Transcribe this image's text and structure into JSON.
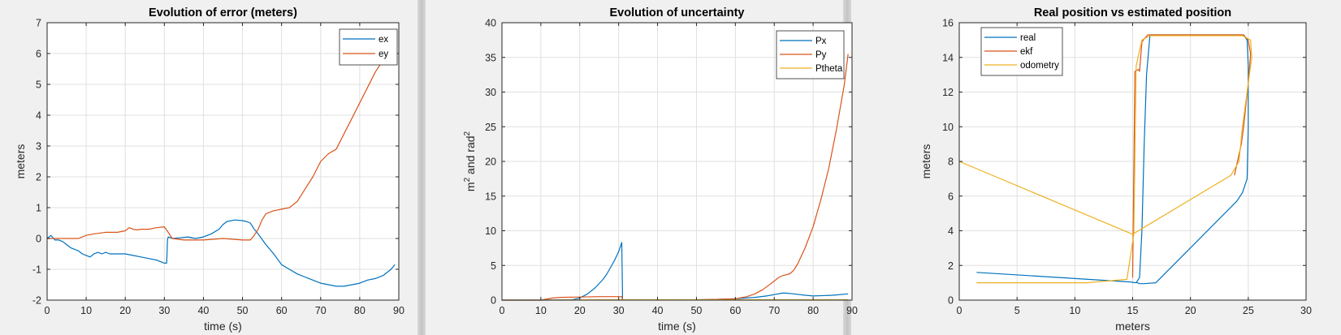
{
  "figure": {
    "background": "#f0f0f0",
    "plot_background": "#ffffff"
  },
  "chart_data": [
    {
      "type": "line",
      "title": "Evolution of error (meters)",
      "xlabel": "time (s)",
      "ylabel": "meters",
      "xlim": [
        0,
        90
      ],
      "ylim": [
        -2,
        7
      ],
      "xticks": [
        0,
        10,
        20,
        30,
        40,
        50,
        60,
        70,
        80,
        90
      ],
      "yticks": [
        -2,
        -1,
        0,
        1,
        2,
        3,
        4,
        5,
        6,
        7
      ],
      "grid": true,
      "legend": "top-right",
      "series": [
        {
          "name": "ex",
          "color": "#0072BD",
          "x": [
            0,
            1,
            2,
            3,
            4,
            5,
            6,
            7,
            8,
            9,
            10,
            11,
            12,
            13,
            14,
            15,
            16,
            18,
            20,
            22,
            24,
            26,
            28,
            30,
            30.6,
            30.8,
            31,
            32,
            34,
            36,
            38,
            40,
            42,
            44,
            45,
            46,
            48,
            50,
            51,
            52,
            53,
            54,
            56,
            58,
            60,
            62,
            64,
            66,
            68,
            70,
            72,
            74,
            76,
            78,
            80,
            82,
            84,
            86,
            88,
            89
          ],
          "y": [
            0,
            0.1,
            -0.05,
            -0.05,
            -0.1,
            -0.2,
            -0.3,
            -0.35,
            -0.4,
            -0.5,
            -0.55,
            -0.6,
            -0.5,
            -0.45,
            -0.5,
            -0.45,
            -0.5,
            -0.5,
            -0.5,
            -0.55,
            -0.6,
            -0.65,
            -0.7,
            -0.8,
            -0.8,
            -0.05,
            0.05,
            0,
            0.02,
            0.05,
            0,
            0.05,
            0.15,
            0.3,
            0.45,
            0.55,
            0.6,
            0.58,
            0.55,
            0.5,
            0.3,
            0.15,
            -0.2,
            -0.5,
            -0.85,
            -1.0,
            -1.15,
            -1.25,
            -1.35,
            -1.45,
            -1.5,
            -1.55,
            -1.55,
            -1.5,
            -1.45,
            -1.35,
            -1.3,
            -1.2,
            -1.0,
            -0.85
          ]
        },
        {
          "name": "ey",
          "color": "#D95319",
          "x": [
            0,
            2,
            5,
            8,
            10,
            12,
            15,
            18,
            20,
            21,
            22,
            23,
            24,
            26,
            28,
            30,
            31,
            32,
            35,
            40,
            45,
            50,
            52,
            53,
            54,
            55,
            56,
            57,
            58,
            60,
            62,
            64,
            66,
            68,
            70,
            72,
            74,
            76,
            78,
            80,
            82,
            84,
            86,
            88,
            89
          ],
          "y": [
            0,
            0,
            0,
            0,
            0.1,
            0.15,
            0.2,
            0.2,
            0.25,
            0.35,
            0.3,
            0.28,
            0.3,
            0.3,
            0.35,
            0.38,
            0.2,
            0,
            -0.05,
            -0.05,
            0,
            -0.05,
            -0.05,
            0.1,
            0.3,
            0.6,
            0.8,
            0.85,
            0.9,
            0.95,
            1.0,
            1.2,
            1.6,
            2.0,
            2.5,
            2.75,
            2.9,
            3.4,
            3.9,
            4.4,
            4.9,
            5.4,
            5.8,
            6.2,
            6.4
          ]
        }
      ]
    },
    {
      "type": "line",
      "title": "Evolution of uncertainty",
      "xlabel": "time (s)",
      "ylabel_main": "m",
      "ylabel_sup1": "2",
      "ylabel_mid": " and rad",
      "ylabel_sup2": "2",
      "xlim": [
        0,
        90
      ],
      "ylim": [
        0,
        40
      ],
      "xticks": [
        0,
        10,
        20,
        30,
        40,
        50,
        60,
        70,
        80,
        90
      ],
      "yticks": [
        0,
        5,
        10,
        15,
        20,
        25,
        30,
        35,
        40
      ],
      "grid": true,
      "legend": "top-right",
      "series": [
        {
          "name": "Px",
          "color": "#0072BD",
          "x": [
            0,
            10,
            18,
            20,
            22,
            24,
            26,
            27,
            28,
            29,
            30,
            30.8,
            31,
            35,
            40,
            45,
            50,
            55,
            60,
            65,
            68,
            70,
            72,
            73,
            75,
            78,
            80,
            85,
            89
          ],
          "y": [
            0,
            0,
            0.05,
            0.3,
            0.9,
            1.8,
            3.0,
            3.8,
            4.8,
            5.8,
            7.0,
            8.3,
            0.05,
            0.05,
            0.05,
            0.05,
            0.05,
            0.1,
            0.2,
            0.4,
            0.6,
            0.8,
            1.0,
            1.0,
            0.9,
            0.7,
            0.6,
            0.7,
            0.9
          ]
        },
        {
          "name": "Py",
          "color": "#D95319",
          "x": [
            0,
            10,
            13,
            15,
            20,
            25,
            30,
            30.8,
            31,
            35,
            40,
            45,
            50,
            55,
            60,
            63,
            65,
            67,
            69,
            71,
            72,
            74,
            75,
            76,
            78,
            80,
            82,
            84,
            86,
            88,
            89
          ],
          "y": [
            0,
            0,
            0.3,
            0.4,
            0.45,
            0.5,
            0.5,
            0.5,
            0.05,
            0.05,
            0.05,
            0.05,
            0.05,
            0.1,
            0.2,
            0.5,
            0.9,
            1.5,
            2.3,
            3.2,
            3.5,
            3.8,
            4.3,
            5.2,
            7.6,
            10.6,
            14.5,
            19.0,
            24.6,
            31.0,
            35.5
          ]
        },
        {
          "name": "Ptheta",
          "color": "#EDB120",
          "x": [
            0,
            30,
            60,
            89
          ],
          "y": [
            0,
            0.05,
            0.05,
            0.05
          ]
        }
      ]
    },
    {
      "type": "line",
      "title": "Real position vs estimated position",
      "xlabel": "meters",
      "ylabel": "meters",
      "xlim": [
        0,
        30
      ],
      "ylim": [
        0,
        16
      ],
      "xticks": [
        0,
        5,
        10,
        15,
        20,
        25,
        30
      ],
      "yticks": [
        0,
        2,
        4,
        6,
        8,
        10,
        12,
        14,
        16
      ],
      "grid": true,
      "legend": "top-left",
      "series": [
        {
          "name": "real",
          "color": "#0072BD",
          "x": [
            1.5,
            14.8,
            15.3,
            15.6,
            15.8,
            16.0,
            16.2,
            16.5,
            24.0,
            24.6,
            24.9,
            25.0,
            25.0,
            24.9,
            24.5,
            24.0,
            17.0,
            16.0,
            15.6,
            15.4,
            15.3
          ],
          "y": [
            1.6,
            1.05,
            1.0,
            1.3,
            4.0,
            9.0,
            13.0,
            15.3,
            15.3,
            15.3,
            15.0,
            13.5,
            10.0,
            7.0,
            6.2,
            5.7,
            1.0,
            0.95,
            0.95,
            1.0,
            1.05
          ]
        },
        {
          "name": "ekf",
          "color": "#D95319",
          "x": [
            15.0,
            15.2,
            15.5,
            15.6,
            15.8,
            16.3,
            24.0,
            24.6,
            25.0,
            25.2,
            25.0,
            24.6,
            24.4,
            24.0,
            23.8
          ],
          "y": [
            1.3,
            13.2,
            13.3,
            13.2,
            14.9,
            15.3,
            15.3,
            15.3,
            15.0,
            14.2,
            12.5,
            10.0,
            9.0,
            7.8,
            7.2
          ]
        },
        {
          "name": "odometry",
          "color": "#EDB120",
          "x": [
            0,
            15.0,
            16.0,
            23.5,
            24.2,
            24.5,
            25.0,
            25.3,
            25.2,
            24.5,
            16.5,
            15.8,
            15.3,
            15.1,
            14.5,
            11.0,
            1.5
          ],
          "y": [
            8.0,
            3.8,
            4.2,
            7.2,
            8.0,
            10.0,
            12.5,
            14.0,
            15.0,
            15.25,
            15.25,
            15.0,
            13.5,
            3.8,
            1.2,
            1.0,
            1.0
          ]
        }
      ]
    }
  ]
}
